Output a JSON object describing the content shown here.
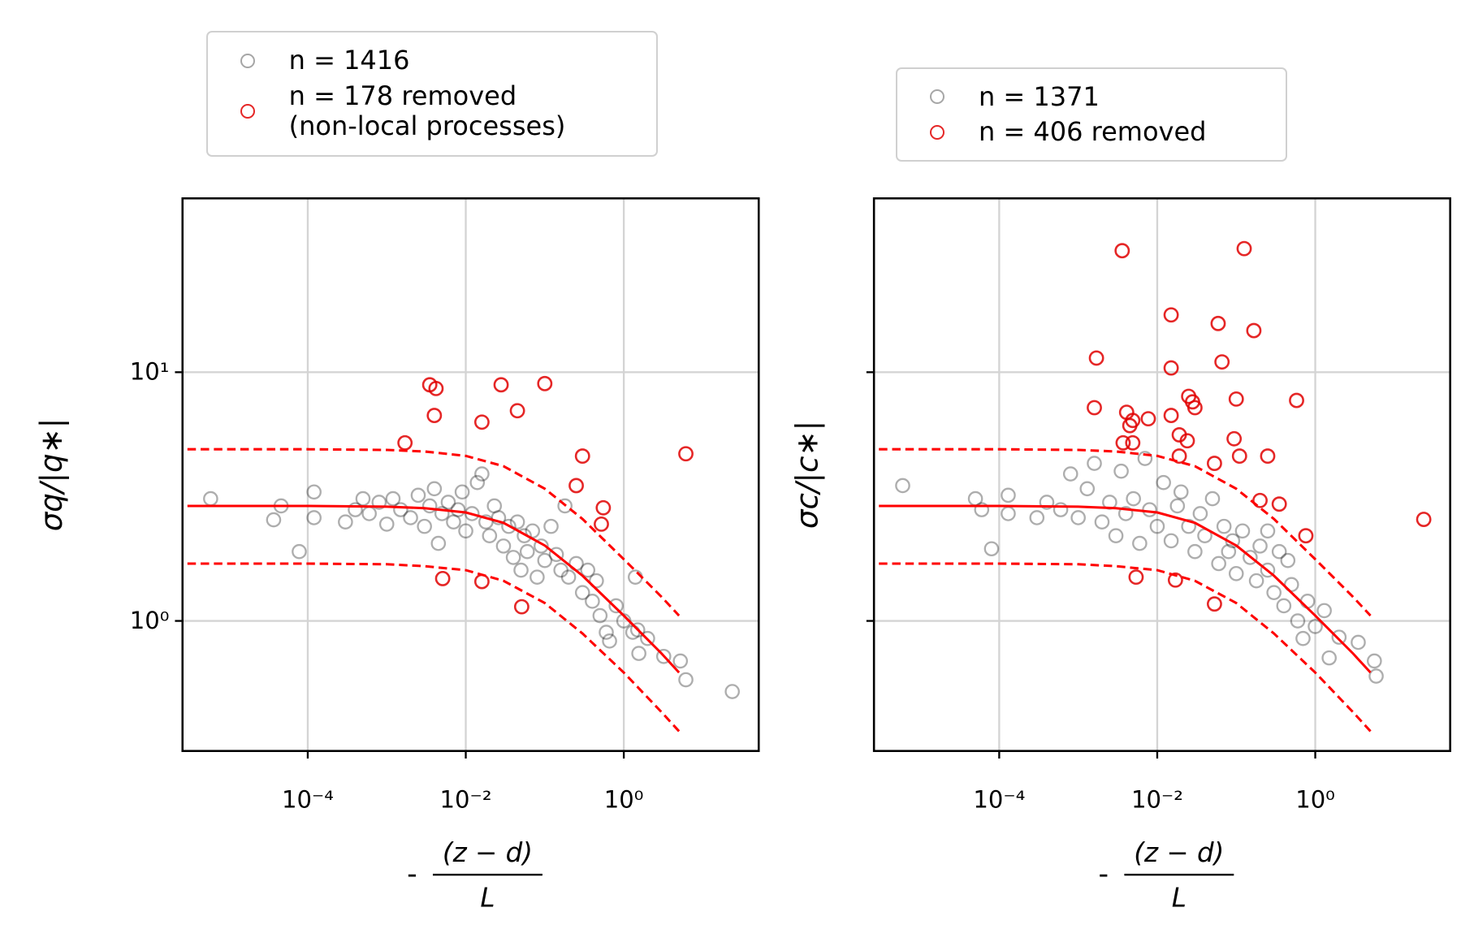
{
  "chart_data": [
    {
      "type": "scatter",
      "ylabel": "σq/|q∗|",
      "xlabel": {
        "prefix": "-",
        "numerator": "(z − d)",
        "denominator": "L"
      },
      "xscale": "log",
      "yscale": "log",
      "grid": true,
      "legend": "above",
      "ytick_labels": true,
      "xlim": [
        2.6e-06,
        51
      ],
      "ylim": [
        0.3,
        50
      ],
      "xticks": [
        {
          "value": 0.0001,
          "label": "10⁻⁴"
        },
        {
          "value": 0.01,
          "label": "10⁻²"
        },
        {
          "value": 1,
          "label": "10⁰"
        }
      ],
      "yticks": [
        {
          "value": 1,
          "label": "10⁰"
        },
        {
          "value": 10,
          "label": "10¹"
        }
      ],
      "series": [
        {
          "name": "n = 1416",
          "color": "#000000",
          "x": [
            5.9e-06,
            4.6e-05,
            3.7e-05,
            7.8e-05,
            0.00012,
            0.00012,
            0.0003,
            0.0004,
            0.0005,
            0.0006,
            0.0008,
            0.001,
            0.0012,
            0.0015,
            0.002,
            0.0025,
            0.003,
            0.0035,
            0.004,
            0.0045,
            0.005,
            0.006,
            0.007,
            0.008,
            0.009,
            0.01,
            0.012,
            0.014,
            0.016,
            0.018,
            0.02,
            0.023,
            0.026,
            0.03,
            0.035,
            0.04,
            0.045,
            0.05,
            0.055,
            0.06,
            0.07,
            0.08,
            0.09,
            0.1,
            0.12,
            0.14,
            0.16,
            0.18,
            0.2,
            0.25,
            0.3,
            0.35,
            0.4,
            0.45,
            0.5,
            0.6,
            0.66,
            0.8,
            1.0,
            1.3,
            1.5,
            1.55,
            2.0,
            3.2,
            5.2,
            6.1,
            23.6,
            1.4
          ],
          "values": [
            3.1,
            2.9,
            2.55,
            1.9,
            3.3,
            2.6,
            2.5,
            2.8,
            3.1,
            2.7,
            3.0,
            2.45,
            3.1,
            2.8,
            2.6,
            3.2,
            2.4,
            2.9,
            3.4,
            2.05,
            2.7,
            3.0,
            2.5,
            2.8,
            3.3,
            2.3,
            2.7,
            3.6,
            3.9,
            2.5,
            2.2,
            2.9,
            2.6,
            2.0,
            2.4,
            1.8,
            2.5,
            1.6,
            2.2,
            1.9,
            2.3,
            1.5,
            2.0,
            1.75,
            2.4,
            1.85,
            1.6,
            2.9,
            1.5,
            1.7,
            1.3,
            1.6,
            1.2,
            1.45,
            1.05,
            0.9,
            0.83,
            1.15,
            1.0,
            0.9,
            0.92,
            0.74,
            0.85,
            0.72,
            0.69,
            0.58,
            0.52,
            1.5
          ]
        },
        {
          "name": "n = 178 removed\n(non-local processes)",
          "color": "#e00000",
          "x": [
            0.0017,
            0.0035,
            0.0042,
            0.004,
            0.028,
            0.1,
            0.045,
            0.016,
            0.3,
            0.25,
            0.55,
            0.52,
            0.0051,
            0.016,
            0.051,
            6.1
          ],
          "values": [
            5.2,
            8.9,
            8.6,
            6.7,
            8.9,
            9.0,
            7.0,
            6.3,
            4.6,
            3.5,
            2.85,
            2.45,
            1.48,
            1.44,
            1.14,
            4.7
          ]
        }
      ],
      "lines": [
        {
          "style": "solid",
          "color": "#ff0000",
          "x": [
            3e-06,
            0.0001,
            0.001,
            0.003,
            0.01,
            0.03,
            0.1,
            0.3,
            1,
            3,
            5
          ],
          "values": [
            2.9,
            2.9,
            2.88,
            2.84,
            2.73,
            2.48,
            2.01,
            1.52,
            1.05,
            0.74,
            0.62
          ]
        },
        {
          "style": "dashed",
          "color": "#ff0000",
          "x": [
            3e-06,
            0.0001,
            0.001,
            0.003,
            0.01,
            0.03,
            0.1,
            0.3,
            1,
            3,
            5
          ],
          "values": [
            4.9,
            4.9,
            4.87,
            4.8,
            4.61,
            4.19,
            3.4,
            2.57,
            1.77,
            1.25,
            1.05
          ]
        },
        {
          "style": "dashed",
          "color": "#ff0000",
          "x": [
            3e-06,
            0.0001,
            0.001,
            0.003,
            0.01,
            0.03,
            0.1,
            0.3,
            1,
            3,
            5
          ],
          "values": [
            1.7,
            1.7,
            1.69,
            1.66,
            1.6,
            1.45,
            1.18,
            0.89,
            0.62,
            0.43,
            0.36
          ]
        }
      ]
    },
    {
      "type": "scatter",
      "ylabel": "σc/|c∗|",
      "xlabel": {
        "prefix": "-",
        "numerator": "(z − d)",
        "denominator": "L"
      },
      "xscale": "log",
      "yscale": "log",
      "grid": true,
      "legend": "above",
      "ytick_labels": false,
      "xlim": [
        2.6e-06,
        51
      ],
      "ylim": [
        0.3,
        50
      ],
      "xticks": [
        {
          "value": 0.0001,
          "label": "10⁻⁴"
        },
        {
          "value": 0.01,
          "label": "10⁻²"
        },
        {
          "value": 1,
          "label": "10⁰"
        }
      ],
      "yticks": [
        1,
        10
      ],
      "series": [
        {
          "name": "n = 1371",
          "color": "#000000",
          "x": [
            6e-06,
            5e-05,
            6e-05,
            8e-05,
            0.00013,
            0.00013,
            0.0003,
            0.0004,
            0.0006,
            0.0008,
            0.001,
            0.0013,
            0.0016,
            0.002,
            0.0025,
            0.003,
            0.0035,
            0.004,
            0.005,
            0.006,
            0.007,
            0.008,
            0.01,
            0.012,
            0.015,
            0.018,
            0.02,
            0.025,
            0.03,
            0.035,
            0.04,
            0.05,
            0.06,
            0.07,
            0.08,
            0.09,
            0.1,
            0.12,
            0.15,
            0.18,
            0.2,
            0.25,
            0.3,
            0.35,
            0.4,
            0.5,
            0.6,
            0.7,
            0.8,
            1.0,
            1.3,
            1.5,
            2.0,
            3.5,
            5.6,
            5.9,
            0.25,
            0.45
          ],
          "values": [
            3.5,
            3.1,
            2.8,
            1.95,
            3.2,
            2.7,
            2.6,
            3.0,
            2.8,
            3.9,
            2.6,
            3.4,
            4.3,
            2.5,
            3.0,
            2.2,
            4.0,
            2.7,
            3.1,
            2.05,
            4.5,
            2.8,
            2.4,
            3.6,
            2.1,
            2.9,
            3.3,
            2.4,
            1.9,
            2.7,
            2.2,
            3.1,
            1.7,
            2.4,
            1.9,
            2.1,
            1.55,
            2.3,
            1.8,
            1.45,
            2.0,
            1.6,
            1.3,
            1.9,
            1.15,
            1.4,
            1.0,
            0.85,
            1.2,
            0.95,
            1.1,
            0.71,
            0.86,
            0.82,
            0.69,
            0.6,
            2.3,
            1.75
          ]
        },
        {
          "name": "n = 406 removed",
          "color": "#e00000",
          "x": [
            0.0036,
            0.126,
            0.015,
            0.059,
            0.167,
            0.0017,
            0.015,
            0.066,
            0.025,
            0.028,
            0.03,
            0.1,
            0.58,
            0.0016,
            0.0041,
            0.0049,
            0.0077,
            0.0045,
            0.015,
            0.019,
            0.024,
            0.0037,
            0.094,
            0.0049,
            0.019,
            0.11,
            0.053,
            0.25,
            0.2,
            0.35,
            0.76,
            23.6,
            0.0054,
            0.017,
            0.053
          ],
          "values": [
            30.8,
            31.4,
            17.0,
            15.7,
            14.7,
            11.4,
            10.4,
            11.0,
            8.0,
            7.6,
            7.2,
            7.8,
            7.7,
            7.2,
            6.9,
            6.4,
            6.5,
            6.1,
            6.7,
            5.6,
            5.3,
            5.2,
            5.4,
            5.2,
            4.6,
            4.6,
            4.3,
            4.6,
            3.05,
            2.95,
            2.2,
            2.56,
            1.5,
            1.46,
            1.17
          ]
        }
      ],
      "lines": [
        {
          "style": "solid",
          "color": "#ff0000",
          "x": [
            3e-06,
            0.0001,
            0.001,
            0.003,
            0.01,
            0.03,
            0.1,
            0.3,
            1,
            3,
            5
          ],
          "values": [
            2.9,
            2.9,
            2.88,
            2.84,
            2.73,
            2.48,
            2.01,
            1.52,
            1.05,
            0.74,
            0.62
          ]
        },
        {
          "style": "dashed",
          "color": "#ff0000",
          "x": [
            3e-06,
            0.0001,
            0.001,
            0.003,
            0.01,
            0.03,
            0.1,
            0.3,
            1,
            3,
            5
          ],
          "values": [
            4.9,
            4.9,
            4.87,
            4.8,
            4.61,
            4.19,
            3.4,
            2.57,
            1.77,
            1.25,
            1.05
          ]
        },
        {
          "style": "dashed",
          "color": "#ff0000",
          "x": [
            3e-06,
            0.0001,
            0.001,
            0.003,
            0.01,
            0.03,
            0.1,
            0.3,
            1,
            3,
            5
          ],
          "values": [
            1.7,
            1.7,
            1.69,
            1.66,
            1.6,
            1.45,
            1.18,
            0.89,
            0.62,
            0.43,
            0.36
          ]
        }
      ]
    }
  ]
}
